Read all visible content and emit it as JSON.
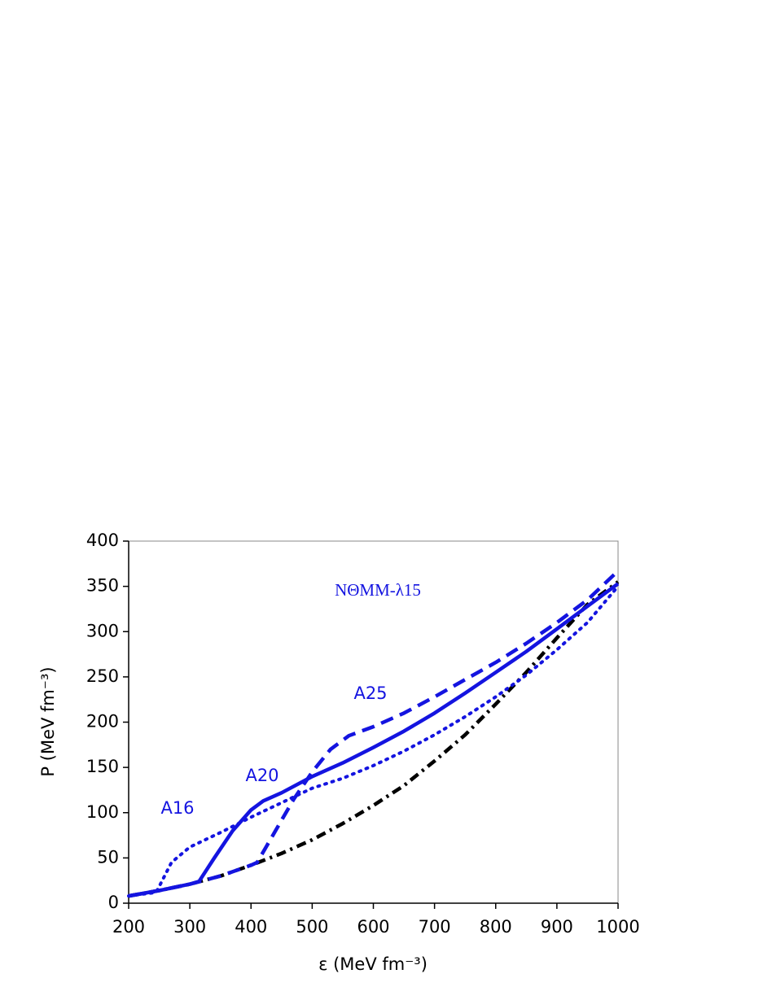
{
  "chart_data": {
    "type": "line",
    "xlabel": "ε (MeV fm⁻³)",
    "ylabel": "P (MeV fm⁻³)",
    "annotations": [
      "NΘMM-λ15",
      "A16",
      "A20",
      "A25"
    ],
    "xlim": [
      200,
      1000
    ],
    "xticks": [
      200,
      300,
      400,
      500,
      600,
      700,
      800,
      900,
      1000
    ],
    "ylim": [
      0,
      400
    ],
    "yticks": [
      0,
      50,
      100,
      150,
      200,
      250,
      300,
      350,
      400
    ],
    "series": [
      {
        "color": "#000000",
        "style": "dashdot",
        "x": [
          200,
          250,
          300,
          350,
          400,
          450,
          500,
          550,
          600,
          650,
          700,
          750,
          800,
          850,
          900,
          950,
          1000
        ],
        "values": [
          8,
          14,
          21,
          30,
          42,
          55,
          70,
          88,
          108,
          130,
          157,
          186,
          220,
          255,
          293,
          330,
          355
        ]
      },
      {
        "color": "#1414e0",
        "style": "dotted",
        "x": [
          200,
          245,
          270,
          300,
          350,
          400,
          450,
          500,
          550,
          600,
          650,
          700,
          750,
          800,
          850,
          900,
          950,
          1000
        ],
        "values": [
          8,
          12,
          45,
          62,
          78,
          95,
          111,
          127,
          138,
          152,
          168,
          186,
          206,
          228,
          252,
          280,
          310,
          350
        ]
      },
      {
        "color": "#1414e0",
        "style": "solid",
        "x": [
          200,
          250,
          300,
          315,
          340,
          370,
          400,
          420,
          450,
          500,
          550,
          600,
          650,
          700,
          750,
          800,
          850,
          900,
          950,
          1000
        ],
        "values": [
          8,
          14,
          21,
          24,
          50,
          80,
          103,
          113,
          122,
          140,
          155,
          172,
          190,
          210,
          232,
          255,
          278,
          303,
          328,
          353
        ]
      },
      {
        "color": "#1414e0",
        "style": "dashed",
        "x": [
          200,
          250,
          300,
          350,
          400,
          410,
          440,
          470,
          500,
          530,
          560,
          600,
          650,
          700,
          750,
          800,
          850,
          900,
          950,
          1000
        ],
        "values": [
          8,
          14,
          21,
          30,
          42,
          45,
          80,
          115,
          145,
          170,
          185,
          195,
          210,
          228,
          247,
          266,
          287,
          310,
          335,
          367
        ]
      }
    ]
  }
}
